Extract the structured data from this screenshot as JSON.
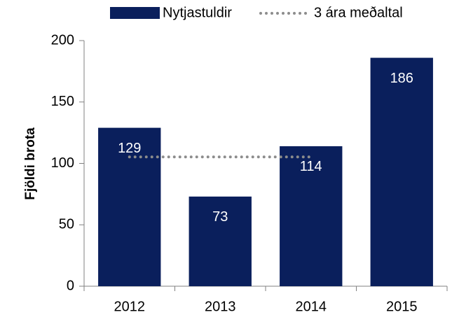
{
  "chart_data": {
    "type": "bar",
    "y_label": "Fjöldi brota",
    "categories": [
      "2012",
      "2013",
      "2014",
      "2015"
    ],
    "series": [
      {
        "name": "Nytjastuldir",
        "color": "#0a1f5c",
        "values": [
          129,
          73,
          114,
          186
        ]
      },
      {
        "name": "3 ára meðaltal",
        "type": "line",
        "style": "dotted",
        "color": "#8c8c8c",
        "values": [
          105.3,
          105.3,
          105.3,
          null
        ]
      }
    ],
    "ylim": [
      0,
      200
    ],
    "yticks": [
      0,
      50,
      100,
      150,
      200
    ],
    "legend": "top"
  }
}
